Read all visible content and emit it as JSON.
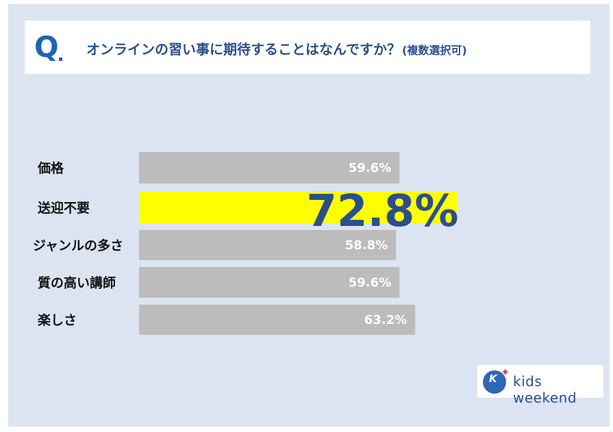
{
  "title": {
    "q_mark": "Q",
    "main": "オンラインの習い事に期待することはなんですか？",
    "sub": "(複数選択可)"
  },
  "chart_data": {
    "type": "bar",
    "orientation": "horizontal",
    "categories": [
      "価格",
      "送迎不要",
      "ジャンルの多さ",
      "質の高い講師",
      "楽しさ"
    ],
    "values": [
      59.6,
      72.8,
      58.8,
      59.6,
      63.2
    ],
    "value_labels": [
      "59.6%",
      "72.8%",
      "58.8%",
      "59.6%",
      "63.2%"
    ],
    "highlight_index": 1,
    "colors": {
      "bar": "#bcbcbc",
      "highlight": "#ffff00",
      "highlight_label": "#2a4f8d"
    },
    "xlim": [
      0,
      100
    ]
  },
  "logo": {
    "mark": "K",
    "text": "kids weekend"
  }
}
